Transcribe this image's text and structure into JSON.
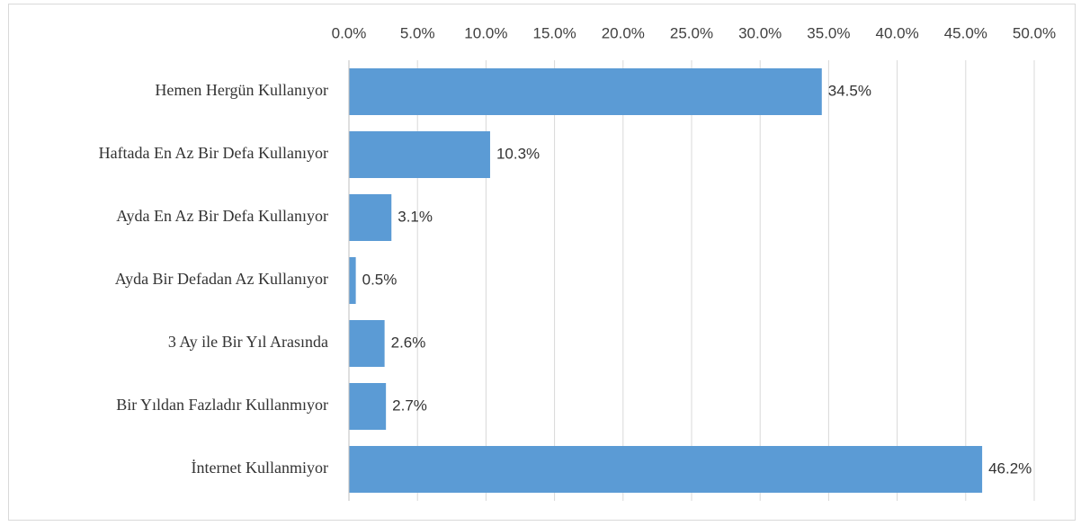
{
  "chart_data": {
    "type": "bar",
    "orientation": "horizontal",
    "categories": [
      "Hemen Hergün Kullanıyor",
      "Haftada En Az Bir Defa Kullanıyor",
      "Ayda En Az Bir Defa Kullanıyor",
      "Ayda Bir Defadan Az Kullanıyor",
      "3 Ay ile Bir Yıl Arasında",
      "Bir Yıldan Fazladır Kullanmıyor",
      "İnternet Kullanmiyor"
    ],
    "values": [
      34.5,
      10.3,
      3.1,
      0.5,
      2.6,
      2.7,
      46.2
    ],
    "value_labels": [
      "34.5%",
      "10.3%",
      "3.1%",
      "0.5%",
      "2.6%",
      "2.7%",
      "46.2%"
    ],
    "color": "#5b9bd5",
    "xlim": [
      0,
      50
    ],
    "xticks": [
      {
        "value": 0,
        "label": "0.0%"
      },
      {
        "value": 5,
        "label": "5.0%"
      },
      {
        "value": 10,
        "label": "10.0%"
      },
      {
        "value": 15,
        "label": "15.0%"
      },
      {
        "value": 20,
        "label": "20.0%"
      },
      {
        "value": 25,
        "label": "25.0%"
      },
      {
        "value": 30,
        "label": "30.0%"
      },
      {
        "value": 35,
        "label": "35.0%"
      },
      {
        "value": 40,
        "label": "40.0%"
      },
      {
        "value": 45,
        "label": "45.0%"
      },
      {
        "value": 50,
        "label": "50.0%"
      }
    ],
    "grid": true
  }
}
